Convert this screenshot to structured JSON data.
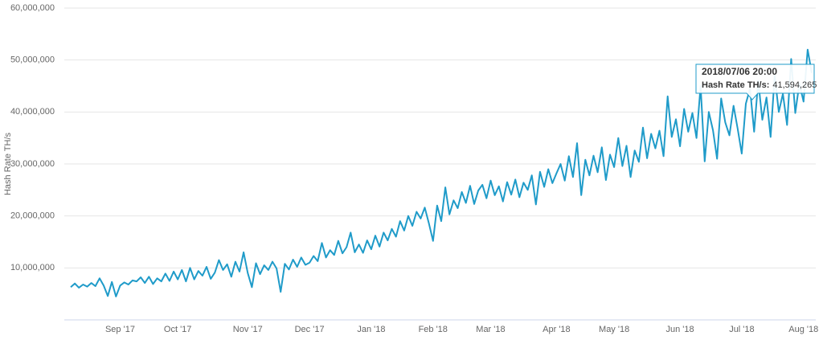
{
  "chart_data": {
    "type": "line",
    "y_axis_title": "Hash Rate TH/s",
    "ylim": [
      0,
      60000000.0
    ],
    "yticks": [
      {
        "value": 10000000.0,
        "label": "10,000,000"
      },
      {
        "value": 20000000.0,
        "label": "20,000,000"
      },
      {
        "value": 30000000.0,
        "label": "30,000,000"
      },
      {
        "value": 40000000.0,
        "label": "40,000,000"
      },
      {
        "value": 50000000.0,
        "label": "50,000,000"
      },
      {
        "value": 60000000.0,
        "label": "60,000,000"
      }
    ],
    "grid": true,
    "categories": [
      null,
      null,
      null,
      null,
      null,
      null,
      null,
      null,
      null,
      null,
      null,
      null,
      "Sep '17",
      null,
      null,
      null,
      null,
      null,
      null,
      null,
      null,
      null,
      null,
      null,
      null,
      null,
      "Oct '17",
      null,
      null,
      null,
      null,
      null,
      null,
      null,
      null,
      null,
      null,
      null,
      null,
      null,
      null,
      null,
      null,
      "Nov '17",
      null,
      null,
      null,
      null,
      null,
      null,
      null,
      null,
      null,
      null,
      null,
      null,
      null,
      null,
      "Dec '17",
      null,
      null,
      null,
      null,
      null,
      null,
      null,
      null,
      null,
      null,
      null,
      null,
      null,
      null,
      "Jan '18",
      null,
      null,
      null,
      null,
      null,
      null,
      null,
      null,
      null,
      null,
      null,
      null,
      null,
      null,
      "Feb '18",
      null,
      null,
      null,
      null,
      null,
      null,
      null,
      null,
      null,
      null,
      null,
      null,
      null,
      "Mar '18",
      null,
      null,
      null,
      null,
      null,
      null,
      null,
      null,
      null,
      null,
      null,
      null,
      null,
      null,
      null,
      "Apr '18",
      null,
      null,
      null,
      null,
      null,
      null,
      null,
      null,
      null,
      null,
      null,
      null,
      null,
      "May '18",
      null,
      null,
      null,
      null,
      null,
      null,
      null,
      null,
      null,
      null,
      null,
      null,
      null,
      null,
      null,
      "Jun '18",
      null,
      null,
      null,
      null,
      null,
      null,
      null,
      null,
      null,
      null,
      null,
      null,
      null,
      null,
      "Jul '18",
      null,
      null,
      null,
      null,
      null,
      null,
      null,
      null,
      null,
      null,
      null,
      null,
      null,
      null,
      "Aug '18",
      null,
      null
    ],
    "series": [
      {
        "name": "Hash Rate TH/s",
        "color": "#1f9bc9",
        "values": [
          6300000.0,
          7000000.0,
          6200000.0,
          6800000.0,
          6400000.0,
          7100000.0,
          6500000.0,
          8000000.0,
          6600000.0,
          4600000.0,
          7300000.0,
          4500000.0,
          6600000.0,
          7200000.0,
          6800000.0,
          7600000.0,
          7400000.0,
          8200000.0,
          7100000.0,
          8300000.0,
          6900000.0,
          8000000.0,
          7400000.0,
          8900000.0,
          7500000.0,
          9300000.0,
          7800000.0,
          9600000.0,
          7400000.0,
          10000000.0,
          7800000.0,
          9400000.0,
          8500000.0,
          10200000.0,
          7900000.0,
          9100000.0,
          11500000.0,
          9600000.0,
          10700000.0,
          8300000.0,
          11200000.0,
          9300000.0,
          13000000.0,
          9000000.0,
          6300000.0,
          10900000.0,
          8800000.0,
          10500000.0,
          9600000.0,
          11200000.0,
          9900000.0,
          5400000.0,
          10800000.0,
          9700000.0,
          11600000.0,
          10200000.0,
          12000000.0,
          10600000.0,
          11000000.0,
          12300000.0,
          11300000.0,
          14800000.0,
          12000000.0,
          13400000.0,
          12500000.0,
          15200000.0,
          12800000.0,
          14000000.0,
          16800000.0,
          13000000.0,
          14500000.0,
          12900000.0,
          15300000.0,
          13600000.0,
          16200000.0,
          14100000.0,
          16800000.0,
          15300000.0,
          17500000.0,
          16000000.0,
          19000000.0,
          17200000.0,
          20000000.0,
          18100000.0,
          20800000.0,
          19500000.0,
          21600000.0,
          18600000.0,
          15200000.0,
          22000000.0,
          19000000.0,
          25500000.0,
          20300000.0,
          23000000.0,
          21500000.0,
          24600000.0,
          22500000.0,
          25800000.0,
          22300000.0,
          24900000.0,
          26000000.0,
          23400000.0,
          26800000.0,
          24000000.0,
          25700000.0,
          22800000.0,
          26500000.0,
          24100000.0,
          27000000.0,
          23600000.0,
          26400000.0,
          25000000.0,
          27800000.0,
          22200000.0,
          28500000.0,
          25600000.0,
          29000000.0,
          26300000.0,
          28200000.0,
          30000000.0,
          26800000.0,
          31500000.0,
          27500000.0,
          34000000.0,
          24000000.0,
          30800000.0,
          27800000.0,
          31600000.0,
          28400000.0,
          33200000.0,
          26900000.0,
          31800000.0,
          29400000.0,
          35000000.0,
          29600000.0,
          33500000.0,
          27500000.0,
          32600000.0,
          30400000.0,
          37000000.0,
          31100000.0,
          35800000.0,
          33000000.0,
          36400000.0,
          31500000.0,
          43000000.0,
          35200000.0,
          38600000.0,
          33400000.0,
          40600000.0,
          36200000.0,
          39800000.0,
          35000000.0,
          45000000.0,
          30500000.0,
          40000000.0,
          36500000.0,
          31000000.0,
          42600000.0,
          38000000.0,
          35500000.0,
          41200000.0,
          36800000.0,
          32000000.0,
          41600000.0,
          44500000.0,
          36200000.0,
          46000000.0,
          38500000.0,
          42800000.0,
          35200000.0,
          47000000.0,
          40000000.0,
          43500000.0,
          37500000.0,
          50200000.0,
          39800000.0,
          45500000.0,
          42000000.0,
          52000000.0,
          47500000.0
        ]
      }
    ],
    "tooltip": {
      "title": "2018/07/06 20:00",
      "label": "Hash Rate TH/s:",
      "value": 41594265,
      "value_label": "41,594,265"
    }
  }
}
